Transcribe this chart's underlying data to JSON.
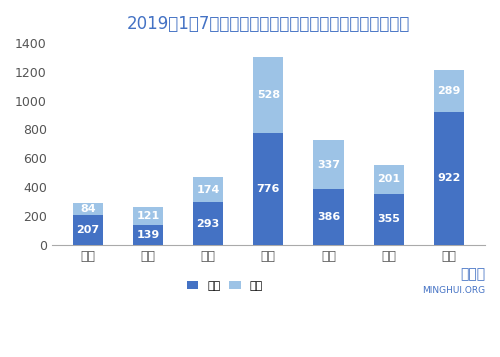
{
  "title": "2019年1＇7月大陸法輪功學員遇中共綁架、騷擾人次統計",
  "title_display": "2019年1～7月大陸法輪功學員遭中共綁架、騷擾人次統計",
  "categories": [
    "一月",
    "二月",
    "三月",
    "四月",
    "五月",
    "六月",
    "七月"
  ],
  "kidnap_values": [
    207,
    139,
    293,
    776,
    386,
    355,
    922
  ],
  "harass_values": [
    84,
    121,
    174,
    528,
    337,
    201,
    289
  ],
  "kidnap_color": "#4472C4",
  "harass_color": "#9DC3E6",
  "background_color": "#FFFFFF",
  "plot_bg_color": "#DDEEFF",
  "ylim": [
    0,
    1400
  ],
  "yticks": [
    0,
    200,
    400,
    600,
    800,
    1000,
    1200,
    1400
  ],
  "legend_kidnap": "綁架",
  "legend_harass": "騷擾",
  "watermark_cn": "明慧網",
  "watermark_en": "MINGHUI.ORG",
  "title_color": "#4472C4",
  "title_fontsize": 12,
  "tick_fontsize": 9,
  "label_fontsize": 8,
  "bar_width": 0.5
}
